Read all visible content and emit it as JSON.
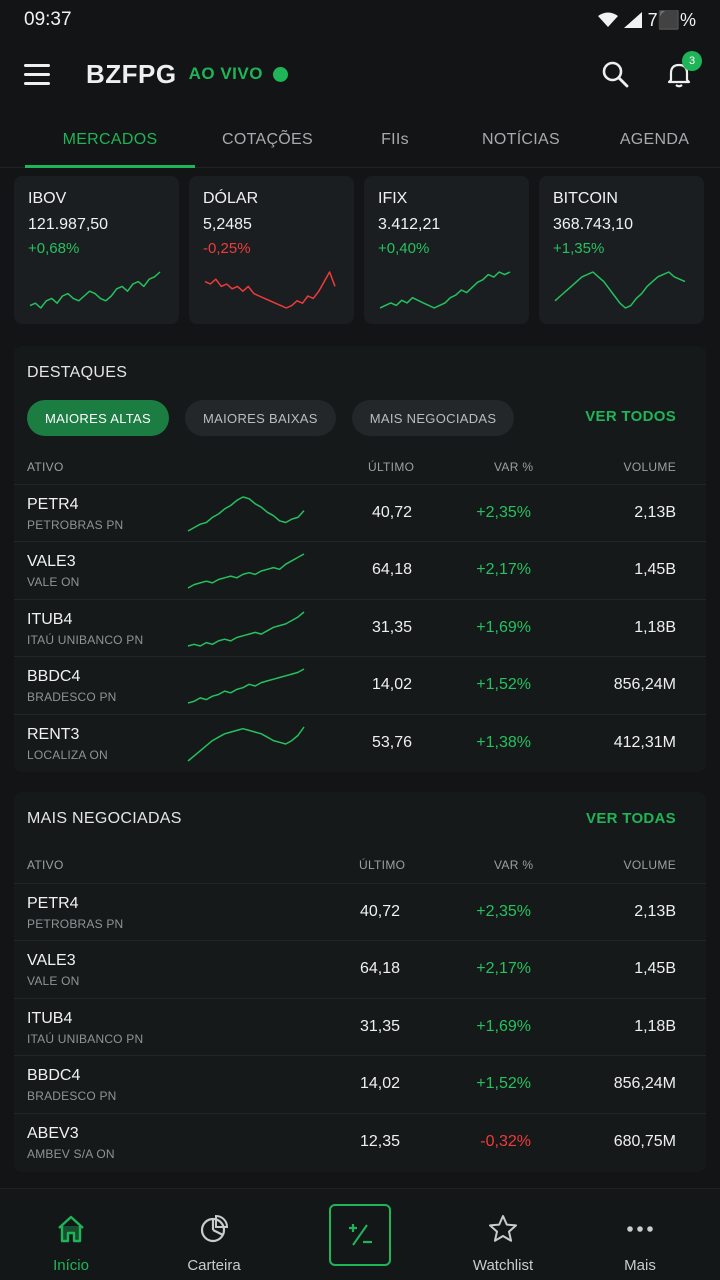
{
  "status": {
    "time": "09:37",
    "battery": "7⬛%"
  },
  "header": {
    "brand": "BZFPG",
    "live_label": "AO VIVO",
    "notifications_count": "3"
  },
  "tabs": [
    {
      "label": "MERCADOS",
      "active": true
    },
    {
      "label": "COTAÇÕES",
      "active": false
    },
    {
      "label": "FIIs",
      "active": false
    },
    {
      "label": "NOTÍCIAS",
      "active": false
    },
    {
      "label": "AGENDA",
      "active": false
    }
  ],
  "indices": [
    {
      "name": "IBOV",
      "value": "121.987,50",
      "change": "+0,68%",
      "direction": "up",
      "spark": [
        10,
        11,
        9,
        12,
        13,
        11,
        14,
        15,
        13,
        12,
        14,
        16,
        15,
        13,
        12,
        14,
        17,
        18,
        16,
        19,
        20,
        18,
        21,
        22,
        24
      ]
    },
    {
      "name": "DÓLAR",
      "value": "5,2485",
      "change": "-0,25%",
      "direction": "down",
      "spark": [
        20,
        19,
        21,
        18,
        19,
        17,
        18,
        16,
        18,
        15,
        14,
        13,
        12,
        11,
        10,
        9,
        10,
        12,
        11,
        14,
        13,
        16,
        20,
        24,
        18
      ]
    },
    {
      "name": "IFIX",
      "value": "3.412,21",
      "change": "+0,40%",
      "direction": "up",
      "spark": [
        10,
        11,
        12,
        11,
        13,
        12,
        14,
        13,
        12,
        11,
        10,
        11,
        12,
        14,
        15,
        17,
        16,
        18,
        20,
        21,
        23,
        22,
        24,
        23,
        24
      ]
    },
    {
      "name": "BITCOIN",
      "value": "368.743,10",
      "change": "+1,35%",
      "direction": "up",
      "spark": [
        12,
        14,
        16,
        18,
        20,
        22,
        23,
        24,
        22,
        20,
        17,
        14,
        11,
        9,
        10,
        13,
        15,
        18,
        20,
        22,
        23,
        24,
        22,
        21,
        20
      ]
    }
  ],
  "highlights": {
    "title": "DESTAQUES",
    "see_all": "VER TODOS",
    "chips": [
      {
        "label": "MAIORES ALTAS",
        "active": true
      },
      {
        "label": "MAIORES BAIXAS",
        "active": false
      },
      {
        "label": "MAIS NEGOCIADAS",
        "active": false
      }
    ],
    "columns": {
      "asset": "ATIVO",
      "last": "ÚLTIMO",
      "var": "VAR %",
      "volume": "VOLUME"
    },
    "rows": [
      {
        "ticker": "PETR4",
        "company": "PETROBRAS PN",
        "last": "40,72",
        "var": "+2,35%",
        "volume": "2,13B",
        "direction": "up",
        "spark": [
          4,
          6,
          8,
          9,
          12,
          14,
          17,
          19,
          22,
          24,
          23,
          20,
          18,
          15,
          13,
          10,
          9,
          11,
          12,
          16
        ]
      },
      {
        "ticker": "VALE3",
        "company": "VALE ON",
        "last": "64,18",
        "var": "+2,17%",
        "volume": "1,45B",
        "direction": "up",
        "spark": [
          4,
          6,
          7,
          8,
          7,
          9,
          10,
          11,
          10,
          12,
          13,
          12,
          14,
          15,
          16,
          15,
          18,
          20,
          22,
          24
        ]
      },
      {
        "ticker": "ITUB4",
        "company": "ITAÚ UNIBANCO PN",
        "last": "31,35",
        "var": "+1,69%",
        "volume": "1,18B",
        "direction": "up",
        "spark": [
          4,
          5,
          4,
          6,
          5,
          7,
          8,
          7,
          9,
          10,
          11,
          12,
          11,
          13,
          15,
          16,
          17,
          19,
          21,
          24
        ]
      },
      {
        "ticker": "BBDC4",
        "company": "BRADESCO PN",
        "last": "14,02",
        "var": "+1,52%",
        "volume": "856,24M",
        "direction": "up",
        "spark": [
          4,
          5,
          7,
          6,
          8,
          9,
          11,
          10,
          12,
          13,
          15,
          14,
          16,
          17,
          18,
          19,
          20,
          21,
          22,
          24
        ]
      },
      {
        "ticker": "RENT3",
        "company": "LOCALIZA ON",
        "last": "53,76",
        "var": "+1,38%",
        "volume": "412,31M",
        "direction": "up",
        "spark": [
          4,
          7,
          10,
          13,
          16,
          18,
          20,
          21,
          22,
          23,
          22,
          21,
          20,
          18,
          16,
          15,
          14,
          16,
          19,
          24
        ]
      }
    ]
  },
  "most_traded": {
    "title": "MAIS NEGOCIADAS",
    "see_all": "VER TODAS",
    "columns": {
      "asset": "ATIVO",
      "last": "ÚLTIMO",
      "var": "VAR %",
      "volume": "VOLUME"
    },
    "rows": [
      {
        "ticker": "PETR4",
        "company": "PETROBRAS PN",
        "last": "40,72",
        "var": "+2,35%",
        "volume": "2,13B",
        "direction": "up"
      },
      {
        "ticker": "VALE3",
        "company": "VALE ON",
        "last": "64,18",
        "var": "+2,17%",
        "volume": "1,45B",
        "direction": "up"
      },
      {
        "ticker": "ITUB4",
        "company": "ITAÚ UNIBANCO PN",
        "last": "31,35",
        "var": "+1,69%",
        "volume": "1,18B",
        "direction": "up"
      },
      {
        "ticker": "BBDC4",
        "company": "BRADESCO PN",
        "last": "14,02",
        "var": "+1,52%",
        "volume": "856,24M",
        "direction": "up"
      },
      {
        "ticker": "ABEV3",
        "company": "AMBEV S/A ON",
        "last": "12,35",
        "var": "-0,32%",
        "volume": "680,75M",
        "direction": "down"
      }
    ]
  },
  "bottom_nav": [
    {
      "label": "Início",
      "icon": "home-icon",
      "active": true
    },
    {
      "label": "Carteira",
      "icon": "pie-chart-icon",
      "active": false
    },
    {
      "label": "",
      "icon": "plus-minus-icon",
      "active": false
    },
    {
      "label": "Watchlist",
      "icon": "star-icon",
      "active": false
    },
    {
      "label": "Mais",
      "icon": "more-dots-icon",
      "active": false
    }
  ],
  "colors": {
    "accent": "#1fb457",
    "up": "#25c15e",
    "down": "#ef3b3b",
    "background": "#121415",
    "card": "#1b1e20"
  }
}
